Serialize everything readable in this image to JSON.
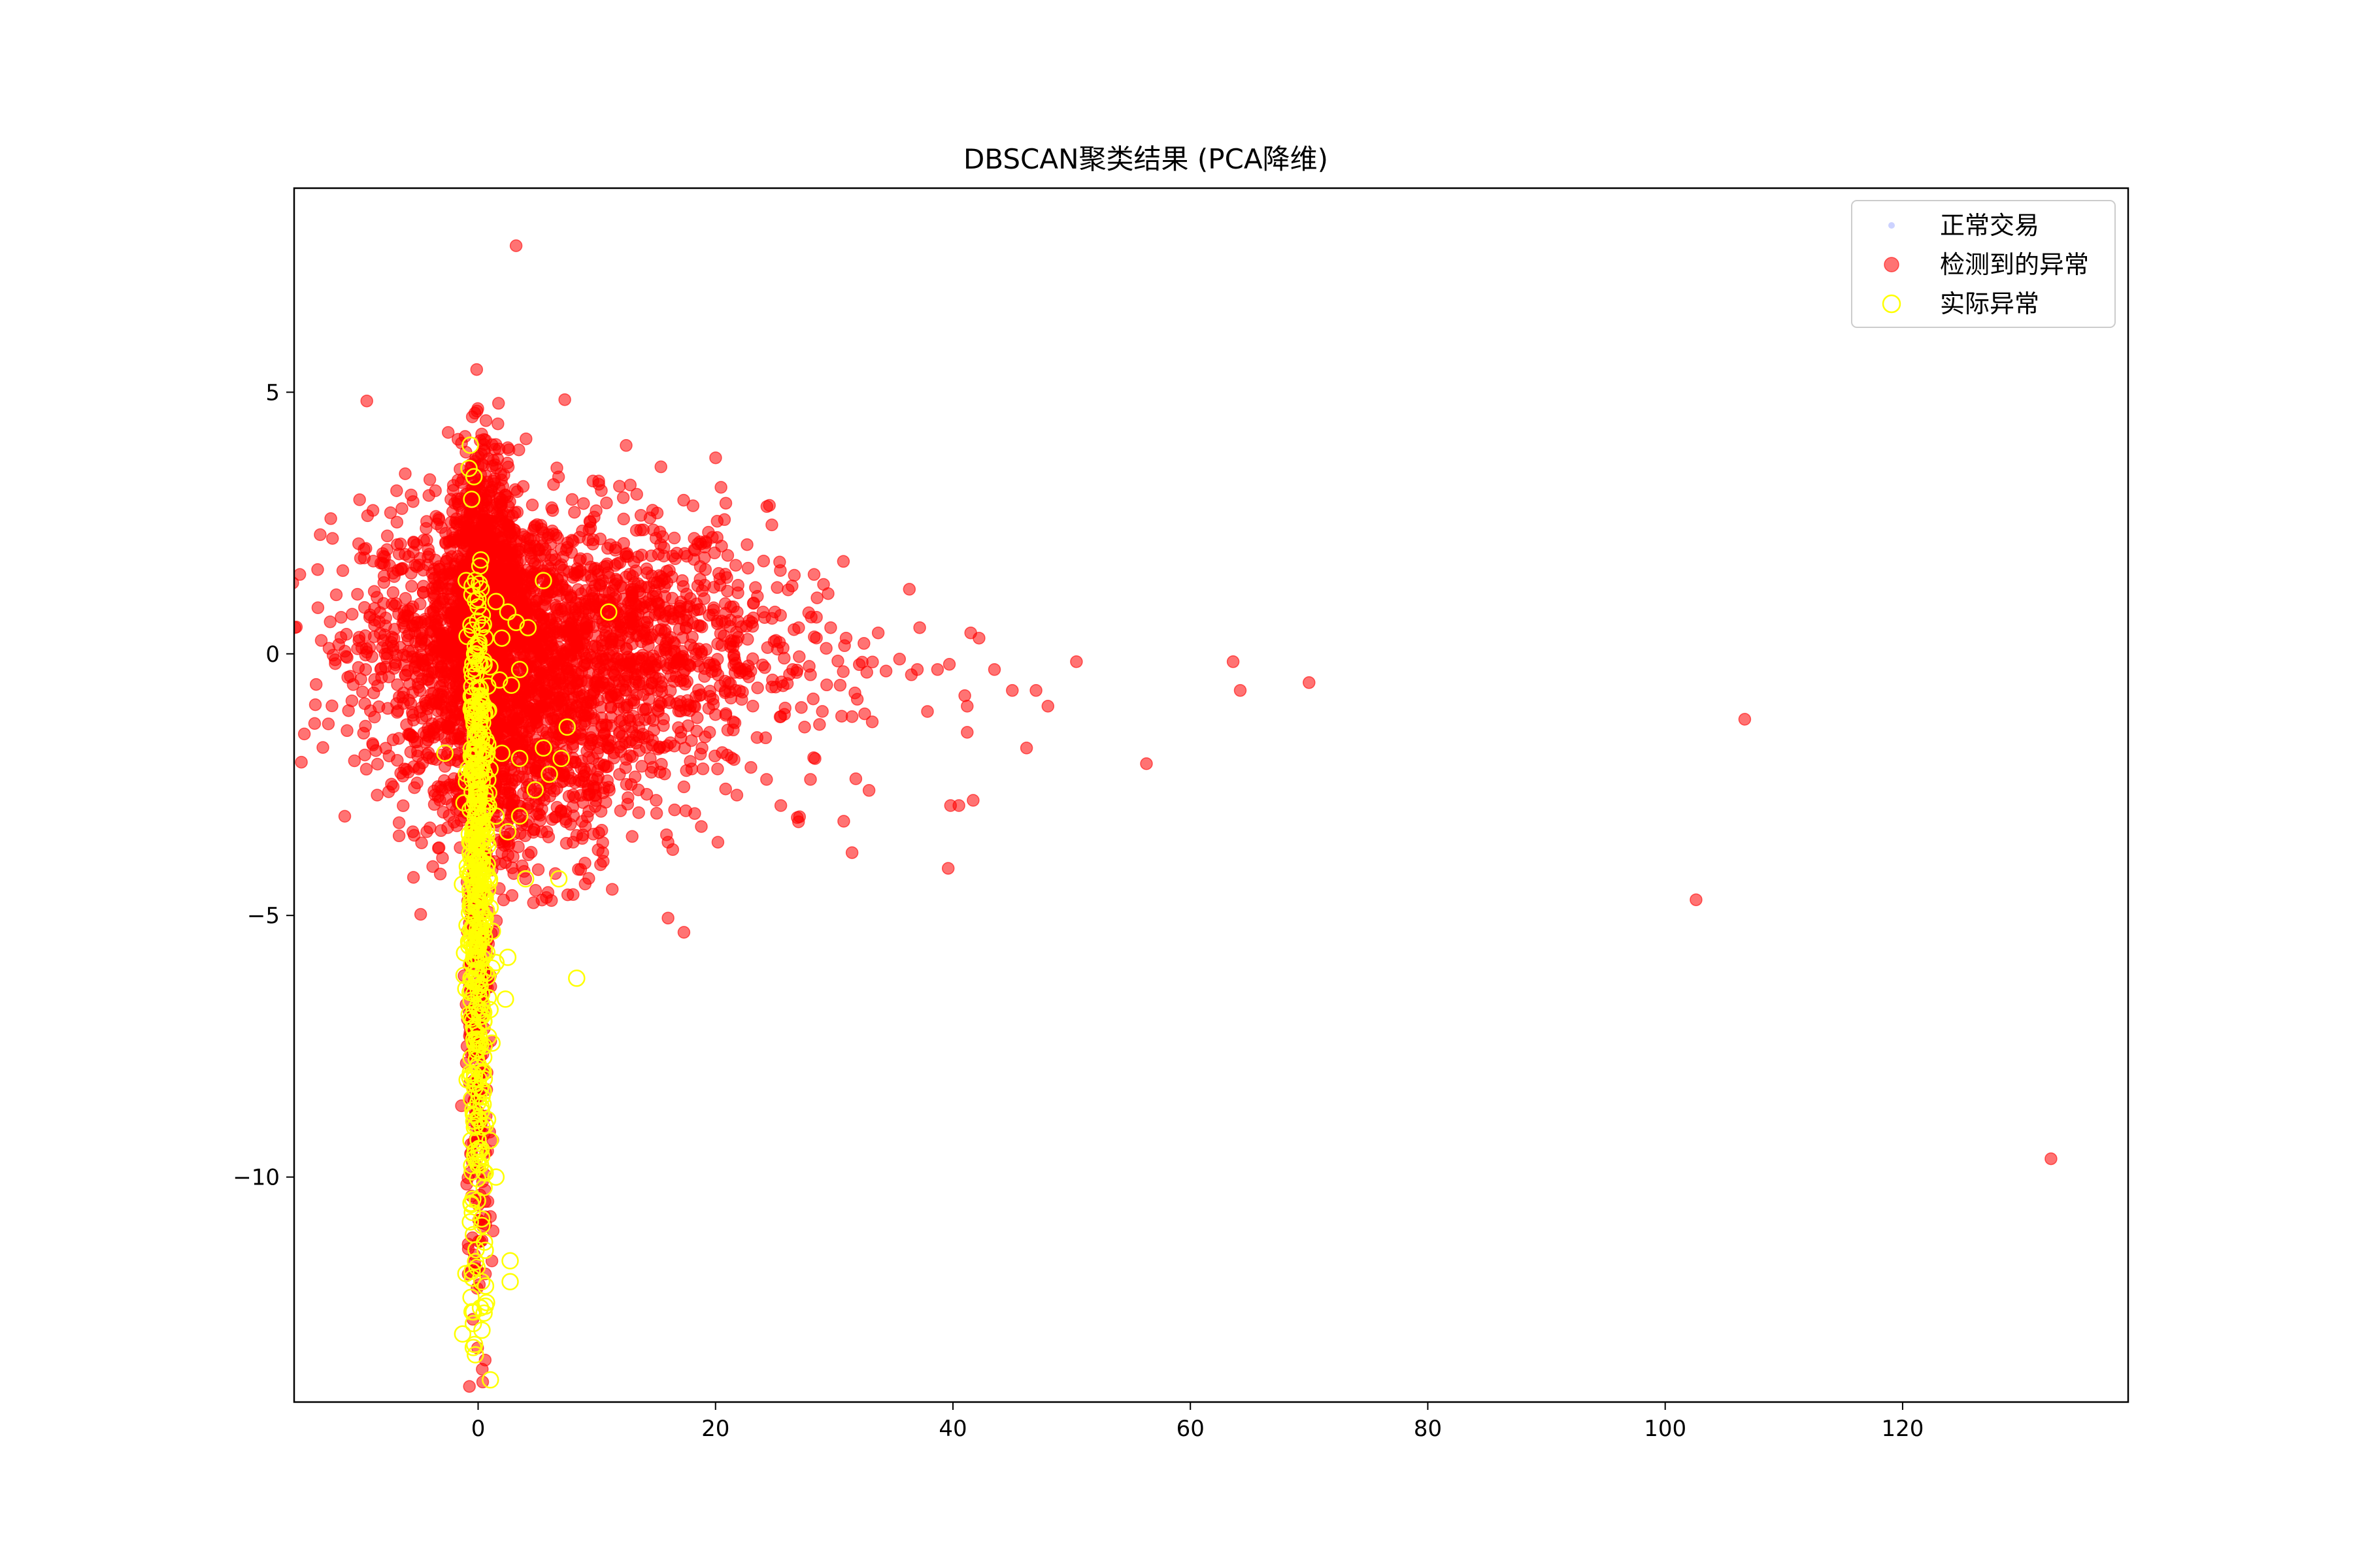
{
  "chart_data": {
    "type": "scatter",
    "title": "DBSCAN聚类结果 (PCA降维)",
    "xlabel": "",
    "ylabel": "",
    "xlim": [
      -15.5,
      139
    ],
    "ylim": [
      -14.3,
      8.9
    ],
    "xticks": [
      0,
      20,
      40,
      60,
      80,
      100,
      120
    ],
    "xtick_labels": [
      "0",
      "20",
      "40",
      "60",
      "80",
      "100",
      "120"
    ],
    "yticks": [
      5,
      0,
      -5,
      -10
    ],
    "ytick_labels": [
      "5",
      "0",
      "−5",
      "−10"
    ],
    "grid": false,
    "legend_position": "top-right",
    "colors": {
      "normal": "#aab4ff",
      "detected": "#ff0000",
      "actual_edge": "#ffff00",
      "axes": "#000000",
      "background": "#ffffff"
    },
    "legend": [
      {
        "label": "正常交易",
        "marker": "normal"
      },
      {
        "label": "检测到的异常",
        "marker": "detected"
      },
      {
        "label": "实际异常",
        "marker": "actual"
      }
    ],
    "series": [
      {
        "name": "检测到的异常",
        "marker": "detected",
        "points": [
          [
            3.2,
            7.8
          ],
          [
            0.3,
            4.2
          ],
          [
            0.5,
            4.0
          ],
          [
            1.5,
            4.0
          ],
          [
            2.6,
            3.9
          ],
          [
            3.8,
            3.2
          ],
          [
            3.3,
            3.1
          ],
          [
            -0.5,
            3.6
          ],
          [
            0.2,
            3.3
          ],
          [
            0.8,
            2.8
          ],
          [
            1.6,
            2.7
          ],
          [
            2.2,
            2.5
          ],
          [
            5.1,
            2.0
          ],
          [
            6.5,
            1.8
          ],
          [
            7.2,
            1.6
          ],
          [
            9.0,
            1.5
          ],
          [
            10.5,
            1.4
          ],
          [
            12.0,
            1.3
          ],
          [
            13.5,
            1.2
          ],
          [
            15.0,
            1.1
          ],
          [
            17.2,
            1.4
          ],
          [
            18.5,
            1.3
          ],
          [
            21.0,
            1.2
          ],
          [
            21.5,
            0.9
          ],
          [
            24.0,
            0.8
          ],
          [
            25.0,
            0.8
          ],
          [
            27.0,
            0.5
          ],
          [
            28.5,
            0.7
          ],
          [
            29.7,
            0.5
          ],
          [
            31.0,
            0.3
          ],
          [
            32.5,
            0.2
          ],
          [
            33.7,
            0.4
          ],
          [
            37.2,
            0.5
          ],
          [
            41.5,
            0.4
          ],
          [
            42.2,
            0.3
          ],
          [
            -5.5,
            0.9
          ],
          [
            -4.8,
            0.6
          ],
          [
            -4.0,
            0.8
          ],
          [
            -3.2,
            0.4
          ],
          [
            -2.5,
            0.2
          ],
          [
            -3.8,
            -0.3
          ],
          [
            -3.0,
            -0.6
          ],
          [
            -2.2,
            -0.9
          ],
          [
            -1.5,
            0.3
          ],
          [
            -1.0,
            -0.2
          ],
          [
            1.2,
            1.0
          ],
          [
            2.5,
            0.8
          ],
          [
            3.5,
            0.6
          ],
          [
            4.5,
            0.5
          ],
          [
            5.5,
            0.7
          ],
          [
            6.8,
            0.4
          ],
          [
            8.0,
            0.3
          ],
          [
            9.2,
            0.5
          ],
          [
            10.8,
            0.2
          ],
          [
            12.5,
            0.1
          ],
          [
            14.0,
            0.4
          ],
          [
            15.8,
            0.1
          ],
          [
            17.0,
            -0.2
          ],
          [
            18.8,
            0.0
          ],
          [
            20.2,
            -0.4
          ],
          [
            22.5,
            -0.3
          ],
          [
            24.8,
            -0.5
          ],
          [
            26.5,
            -0.3
          ],
          [
            28.0,
            -0.4
          ],
          [
            30.5,
            -0.6
          ],
          [
            35.5,
            -0.1
          ],
          [
            37.0,
            -0.3
          ],
          [
            38.7,
            -0.3
          ],
          [
            39.7,
            -0.2
          ],
          [
            36.5,
            -0.4
          ],
          [
            41.0,
            -0.8
          ],
          [
            41.2,
            -1.0
          ],
          [
            43.5,
            -0.3
          ],
          [
            45.0,
            -0.7
          ],
          [
            47.0,
            -0.7
          ],
          [
            48.0,
            -1.0
          ],
          [
            50.4,
            -0.15
          ],
          [
            63.6,
            -0.15
          ],
          [
            64.2,
            -0.7
          ],
          [
            70.0,
            -0.55
          ],
          [
            106.7,
            -1.25
          ],
          [
            41.2,
            -1.5
          ],
          [
            46.2,
            -1.8
          ],
          [
            56.3,
            -2.1
          ],
          [
            1.0,
            -0.8
          ],
          [
            2.2,
            -1.0
          ],
          [
            3.8,
            -1.2
          ],
          [
            5.0,
            -1.4
          ],
          [
            6.5,
            -1.0
          ],
          [
            8.2,
            -1.3
          ],
          [
            9.5,
            -1.6
          ],
          [
            11.0,
            -1.8
          ],
          [
            13.0,
            -1.5
          ],
          [
            14.5,
            -2.0
          ],
          [
            16.2,
            -1.7
          ],
          [
            18.0,
            -2.2
          ],
          [
            19.5,
            -1.5
          ],
          [
            21.5,
            -1.3
          ],
          [
            23.5,
            -1.6
          ],
          [
            25.5,
            -1.2
          ],
          [
            27.5,
            -1.4
          ],
          [
            29.0,
            -1.1
          ],
          [
            31.5,
            -1.2
          ],
          [
            33.2,
            -1.3
          ],
          [
            -8.5,
            -2.7
          ],
          [
            -6.2,
            -2.2
          ],
          [
            -5.0,
            -2.2
          ],
          [
            -5.5,
            -3.4
          ],
          [
            -3.0,
            -3.9
          ],
          [
            -2.0,
            -2.5
          ],
          [
            -1.5,
            -3.0
          ],
          [
            1.5,
            -2.5
          ],
          [
            3.0,
            -2.8
          ],
          [
            4.2,
            -3.2
          ],
          [
            5.8,
            -3.4
          ],
          [
            7.0,
            -3.0
          ],
          [
            8.0,
            -3.6
          ],
          [
            9.0,
            -4.0
          ],
          [
            10.5,
            -3.8
          ],
          [
            12.0,
            -3.0
          ],
          [
            13.5,
            -2.6
          ],
          [
            15.0,
            -2.8
          ],
          [
            16.0,
            -3.6
          ],
          [
            17.5,
            -3.0
          ],
          [
            18.8,
            -3.3
          ],
          [
            20.2,
            -3.6
          ],
          [
            21.8,
            -2.7
          ],
          [
            24.3,
            -2.4
          ],
          [
            25.5,
            -2.9
          ],
          [
            28.0,
            -2.4
          ],
          [
            30.8,
            -3.2
          ],
          [
            31.5,
            -3.8
          ],
          [
            39.6,
            -4.1
          ],
          [
            39.8,
            -2.9
          ],
          [
            41.7,
            -2.8
          ],
          [
            40.5,
            -2.9
          ],
          [
            8.0,
            -4.6
          ],
          [
            11.3,
            -4.5
          ],
          [
            16.0,
            -5.05
          ],
          [
            2.0,
            -3.8
          ],
          [
            3.0,
            -4.2
          ],
          [
            4.0,
            -4.3
          ],
          [
            6.5,
            -4.2
          ],
          [
            102.6,
            -4.7
          ],
          [
            132.5,
            -9.65
          ]
        ]
      },
      {
        "name": "实际异常",
        "marker": "actual",
        "points": [
          [
            -1.0,
            1.4
          ],
          [
            -0.5,
            1.3
          ],
          [
            0.0,
            0.9
          ],
          [
            0.3,
            0.5
          ],
          [
            1.5,
            1.0
          ],
          [
            2.5,
            0.8
          ],
          [
            3.2,
            0.6
          ],
          [
            5.5,
            1.4
          ],
          [
            4.2,
            0.5
          ],
          [
            11.0,
            0.8
          ],
          [
            2.0,
            0.3
          ],
          [
            3.5,
            -0.3
          ],
          [
            1.8,
            -0.5
          ],
          [
            2.8,
            -0.6
          ],
          [
            0.5,
            -0.2
          ],
          [
            -0.3,
            0.0
          ],
          [
            0.2,
            -0.8
          ],
          [
            -0.4,
            -1.0
          ],
          [
            -2.8,
            -1.9
          ],
          [
            0.8,
            -1.1
          ],
          [
            0.0,
            -1.5
          ],
          [
            -0.3,
            -1.8
          ],
          [
            0.4,
            -2.0
          ],
          [
            1.0,
            -2.2
          ],
          [
            2.0,
            -1.9
          ],
          [
            3.5,
            -2.0
          ],
          [
            4.8,
            -2.6
          ],
          [
            5.5,
            -1.8
          ],
          [
            7.0,
            -2.0
          ],
          [
            7.5,
            -1.4
          ],
          [
            6.0,
            -2.3
          ],
          [
            -0.5,
            -2.4
          ],
          [
            0.0,
            -2.7
          ],
          [
            0.6,
            -3.0
          ],
          [
            -0.4,
            -3.3
          ],
          [
            0.3,
            -3.6
          ],
          [
            1.5,
            -3.1
          ],
          [
            2.5,
            -3.4
          ],
          [
            3.5,
            -3.1
          ],
          [
            -0.6,
            -3.9
          ],
          [
            0.0,
            -4.2
          ],
          [
            0.8,
            -4.5
          ],
          [
            -0.5,
            -4.8
          ],
          [
            0.4,
            -5.0
          ],
          [
            1.2,
            -5.3
          ],
          [
            -0.8,
            -5.5
          ],
          [
            0.0,
            -5.8
          ],
          [
            1.5,
            -5.9
          ],
          [
            2.5,
            -5.8
          ],
          [
            -0.6,
            -6.2
          ],
          [
            0.3,
            -6.5
          ],
          [
            1.0,
            -6.8
          ],
          [
            2.3,
            -6.6
          ],
          [
            8.3,
            -6.2
          ],
          [
            -0.3,
            -7.2
          ],
          [
            0.5,
            -7.5
          ],
          [
            -0.7,
            -8.1
          ],
          [
            0.2,
            -8.3
          ],
          [
            -0.4,
            -8.8
          ],
          [
            0.8,
            -8.9
          ],
          [
            -0.6,
            -9.3
          ],
          [
            0.3,
            -9.6
          ],
          [
            1.0,
            -9.3
          ],
          [
            -0.5,
            -9.9
          ],
          [
            0.5,
            -10.2
          ],
          [
            1.5,
            -10.0
          ],
          [
            -0.6,
            -10.5
          ],
          [
            0.3,
            -10.8
          ],
          [
            -0.4,
            -11.1
          ],
          [
            0.6,
            -11.4
          ],
          [
            -0.5,
            -11.8
          ],
          [
            0.3,
            -12.0
          ],
          [
            -0.6,
            -12.3
          ],
          [
            0.2,
            -12.5
          ],
          [
            -0.4,
            -12.8
          ],
          [
            0.5,
            -12.6
          ],
          [
            -0.3,
            -13.2
          ],
          [
            2.7,
            -11.6
          ],
          [
            2.7,
            -12.0
          ],
          [
            4.0,
            -4.3
          ],
          [
            6.8,
            -4.3
          ]
        ]
      }
    ],
    "dense_regions": [
      {
        "series": "检测到的异常",
        "x_mean": 3.5,
        "x_spread": 6.5,
        "y_mean": 0.2,
        "y_spread": 1.3,
        "count": 2600,
        "skew_x": true
      },
      {
        "series": "检测到的异常",
        "x_mean": 0.5,
        "x_spread": 1.5,
        "y_mean": 1.8,
        "y_spread": 1.1,
        "count": 500
      },
      {
        "series": "检测到的异常",
        "x_mean": 3.0,
        "x_spread": 3.5,
        "y_mean": -2.3,
        "y_spread": 1.0,
        "count": 550,
        "skew_x": true
      },
      {
        "series": "检测到的异常",
        "x_mean": 0.0,
        "x_spread": 0.55,
        "y_mean": -6.5,
        "y_spread": 3.2,
        "count": 260
      },
      {
        "series": "实际异常",
        "x_mean": -0.1,
        "x_spread": 0.45,
        "y_mean": -3.6,
        "y_spread": 2.5,
        "count": 280
      },
      {
        "series": "实际异常",
        "x_mean": 0.0,
        "x_spread": 0.55,
        "y_mean": -7.0,
        "y_spread": 3.4,
        "count": 140
      }
    ]
  }
}
